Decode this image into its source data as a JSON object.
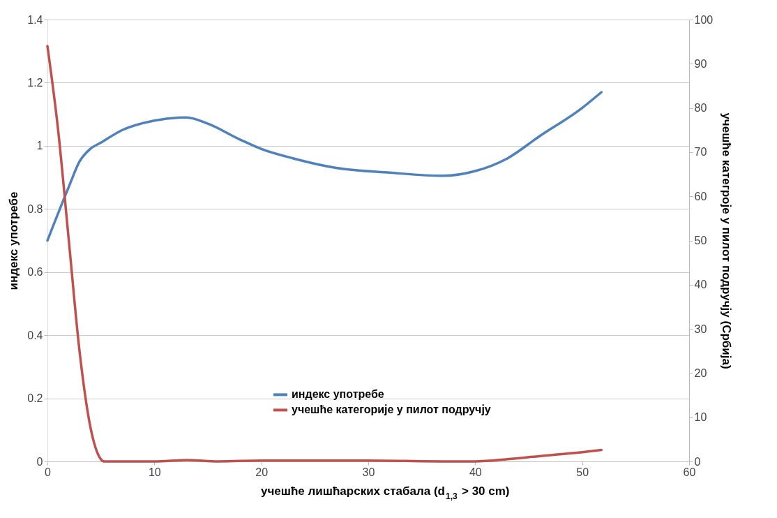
{
  "chart_data": {
    "type": "line",
    "xlabel": "учешће лишћарских стабала (d$_{1,3}$ > 30 cm)",
    "ylabel": "индекс употребе",
    "y2label": "учешће категроје у пилот подручју (Србија)",
    "xlim": [
      0,
      60
    ],
    "xticks": [
      0,
      10,
      20,
      30,
      40,
      50,
      60
    ],
    "ylim": [
      0,
      1.4
    ],
    "yticks": [
      0,
      0.2,
      0.4,
      0.6,
      0.8,
      1,
      1.2,
      1.4
    ],
    "y2lim": [
      0,
      100
    ],
    "y2ticks": [
      0,
      10,
      20,
      30,
      40,
      50,
      60,
      70,
      80,
      90,
      100
    ],
    "grid": "y",
    "legend": "bottom",
    "marker": "none",
    "line_style": "solid",
    "series": [
      {
        "name": "индекс употребе",
        "color": "#4f81bd",
        "x": [
          0,
          2,
          3,
          4,
          5,
          7,
          10,
          13,
          15,
          18,
          20,
          23,
          27,
          32,
          37,
          40,
          43,
          46,
          50,
          51.8
        ],
        "values": [
          0.7,
          0.87,
          0.95,
          0.99,
          1.01,
          1.05,
          1.08,
          1.09,
          1.07,
          1.02,
          0.99,
          0.96,
          0.93,
          0.915,
          0.905,
          0.92,
          0.96,
          1.03,
          1.12,
          1.17
        ]
      },
      {
        "name": "учешће категорије у пилот подручју",
        "color": "#c0504d",
        "axis": "y2",
        "x": [
          0,
          1,
          2,
          3,
          4,
          5,
          5.3,
          10,
          13,
          16,
          20,
          30,
          37,
          40,
          43,
          46,
          50,
          51.8
        ],
        "values": [
          94,
          75,
          50,
          25,
          8,
          0.5,
          0,
          0,
          0.3,
          0,
          0.2,
          0.2,
          0,
          0,
          0.5,
          1.2,
          2.1,
          2.6
        ]
      }
    ]
  }
}
